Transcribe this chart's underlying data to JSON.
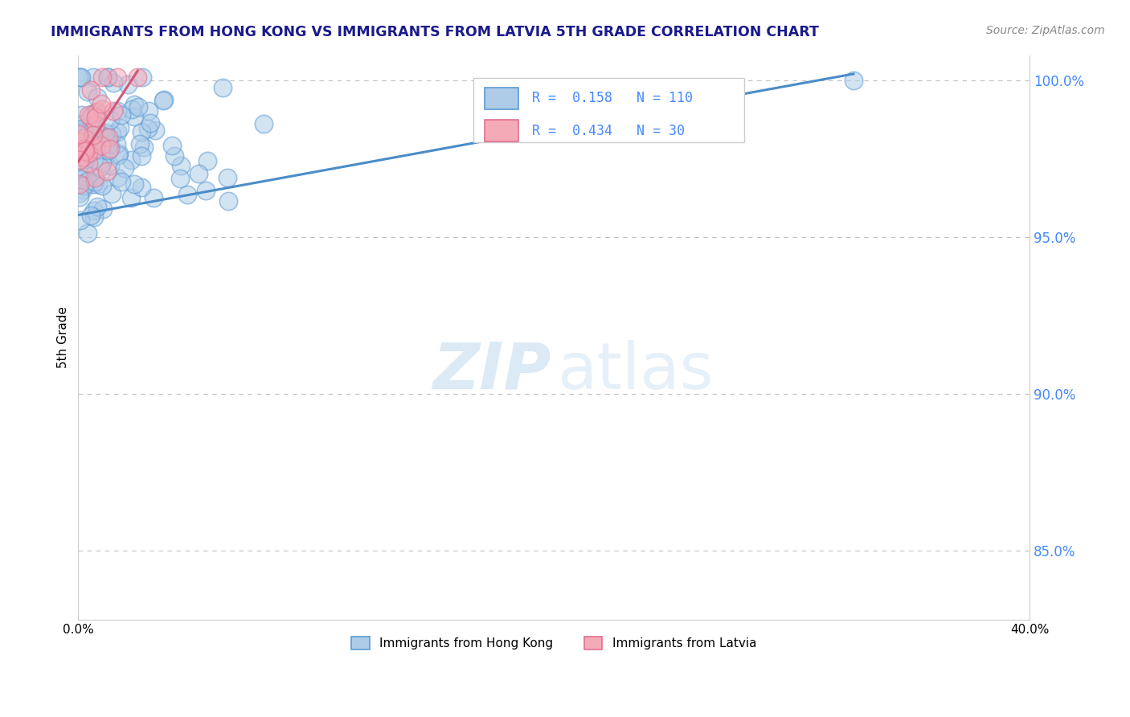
{
  "title": "IMMIGRANTS FROM HONG KONG VS IMMIGRANTS FROM LATVIA 5TH GRADE CORRELATION CHART",
  "source_text": "Source: ZipAtlas.com",
  "ylabel": "5th Grade",
  "xmin": 0.0,
  "xmax": 0.4,
  "ymin": 0.828,
  "ymax": 1.008,
  "yticks": [
    0.85,
    0.9,
    0.95,
    1.0
  ],
  "ytick_labels": [
    "85.0%",
    "90.0%",
    "95.0%",
    "100.0%"
  ],
  "xticks": [
    0.0,
    0.4
  ],
  "xtick_labels": [
    "0.0%",
    "40.0%"
  ],
  "legend_labels": [
    "Immigrants from Hong Kong",
    "Immigrants from Latvia"
  ],
  "hk_R": 0.158,
  "hk_N": 110,
  "lv_R": 0.434,
  "lv_N": 30,
  "hk_color": "#aecce8",
  "lv_color": "#f5aab8",
  "hk_edge_color": "#5b9bd5",
  "lv_edge_color": "#e07090",
  "hk_line_color": "#4a8cc8",
  "lv_line_color": "#d05878",
  "watermark_zip_color": "#c8dff0",
  "watermark_atlas_color": "#c8dff0",
  "seed": 42,
  "title_color": "#1a1a8c",
  "source_color": "#888888",
  "right_tick_color": "#4488ff"
}
